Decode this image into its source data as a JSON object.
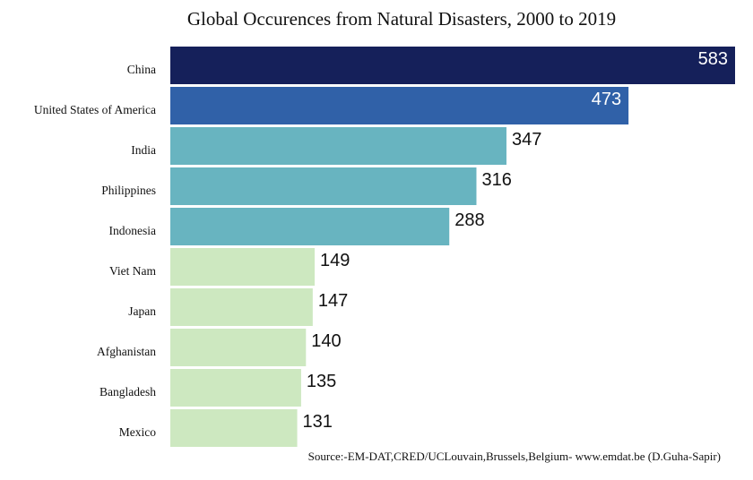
{
  "chart_data": {
    "type": "bar",
    "orientation": "horizontal",
    "title": "Global Occurences from Natural Disasters, 2000 to 2019",
    "xlabel": "",
    "ylabel": "",
    "categories": [
      "China",
      "United States of America",
      "India",
      "Philippines",
      "Indonesia",
      "Viet Nam",
      "Japan",
      "Afghanistan",
      "Bangladesh",
      "Mexico"
    ],
    "values": [
      583,
      473,
      347,
      316,
      288,
      149,
      147,
      140,
      135,
      131
    ],
    "xlim": [
      0,
      583
    ],
    "bar_colors": [
      "#15205a",
      "#3061a8",
      "#68b4c0",
      "#68b4c0",
      "#68b4c0",
      "#cde8c0",
      "#cde8c0",
      "#cde8c0",
      "#cde8c0",
      "#cde8c0"
    ],
    "label_colors": [
      "#ffffff",
      "#ffffff",
      "#111111",
      "#111111",
      "#111111",
      "#111111",
      "#111111",
      "#111111",
      "#111111",
      "#111111"
    ],
    "label_inside": [
      true,
      true,
      false,
      false,
      false,
      false,
      false,
      false,
      false,
      false
    ],
    "grid": false,
    "legend": "none",
    "source": "Source:-EM-DAT,CRED/UCLouvain,Brussels,Belgium- www.emdat.be (D.Guha-Sapir)"
  }
}
